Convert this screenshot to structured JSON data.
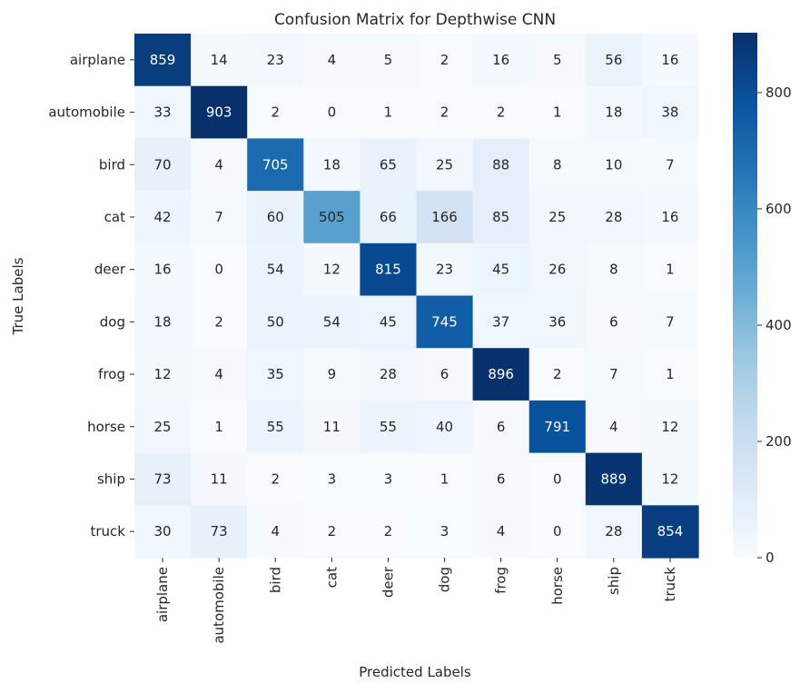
{
  "chart_data": {
    "type": "heatmap",
    "title": "Confusion Matrix for Depthwise CNN",
    "xlabel": "Predicted Labels",
    "ylabel": "True Labels",
    "x_categories": [
      "airplane",
      "automobile",
      "bird",
      "cat",
      "deer",
      "dog",
      "frog",
      "horse",
      "ship",
      "truck"
    ],
    "y_categories": [
      "airplane",
      "automobile",
      "bird",
      "cat",
      "deer",
      "dog",
      "frog",
      "horse",
      "ship",
      "truck"
    ],
    "values": [
      [
        859,
        14,
        23,
        4,
        5,
        2,
        16,
        5,
        56,
        16
      ],
      [
        33,
        903,
        2,
        0,
        1,
        2,
        2,
        1,
        18,
        38
      ],
      [
        70,
        4,
        705,
        18,
        65,
        25,
        88,
        8,
        10,
        7
      ],
      [
        42,
        7,
        60,
        505,
        66,
        166,
        85,
        25,
        28,
        16
      ],
      [
        16,
        0,
        54,
        12,
        815,
        23,
        45,
        26,
        8,
        1
      ],
      [
        18,
        2,
        50,
        54,
        45,
        745,
        37,
        36,
        6,
        7
      ],
      [
        12,
        4,
        35,
        9,
        28,
        6,
        896,
        2,
        7,
        1
      ],
      [
        25,
        1,
        55,
        11,
        55,
        40,
        6,
        791,
        4,
        12
      ],
      [
        73,
        11,
        2,
        3,
        3,
        1,
        6,
        0,
        889,
        12
      ],
      [
        30,
        73,
        4,
        2,
        2,
        3,
        4,
        0,
        28,
        854
      ]
    ],
    "colormap": "Blues",
    "color_range": [
      0,
      903
    ],
    "colorbar_ticks": [
      0,
      200,
      400,
      600,
      800
    ],
    "annotations": true
  }
}
